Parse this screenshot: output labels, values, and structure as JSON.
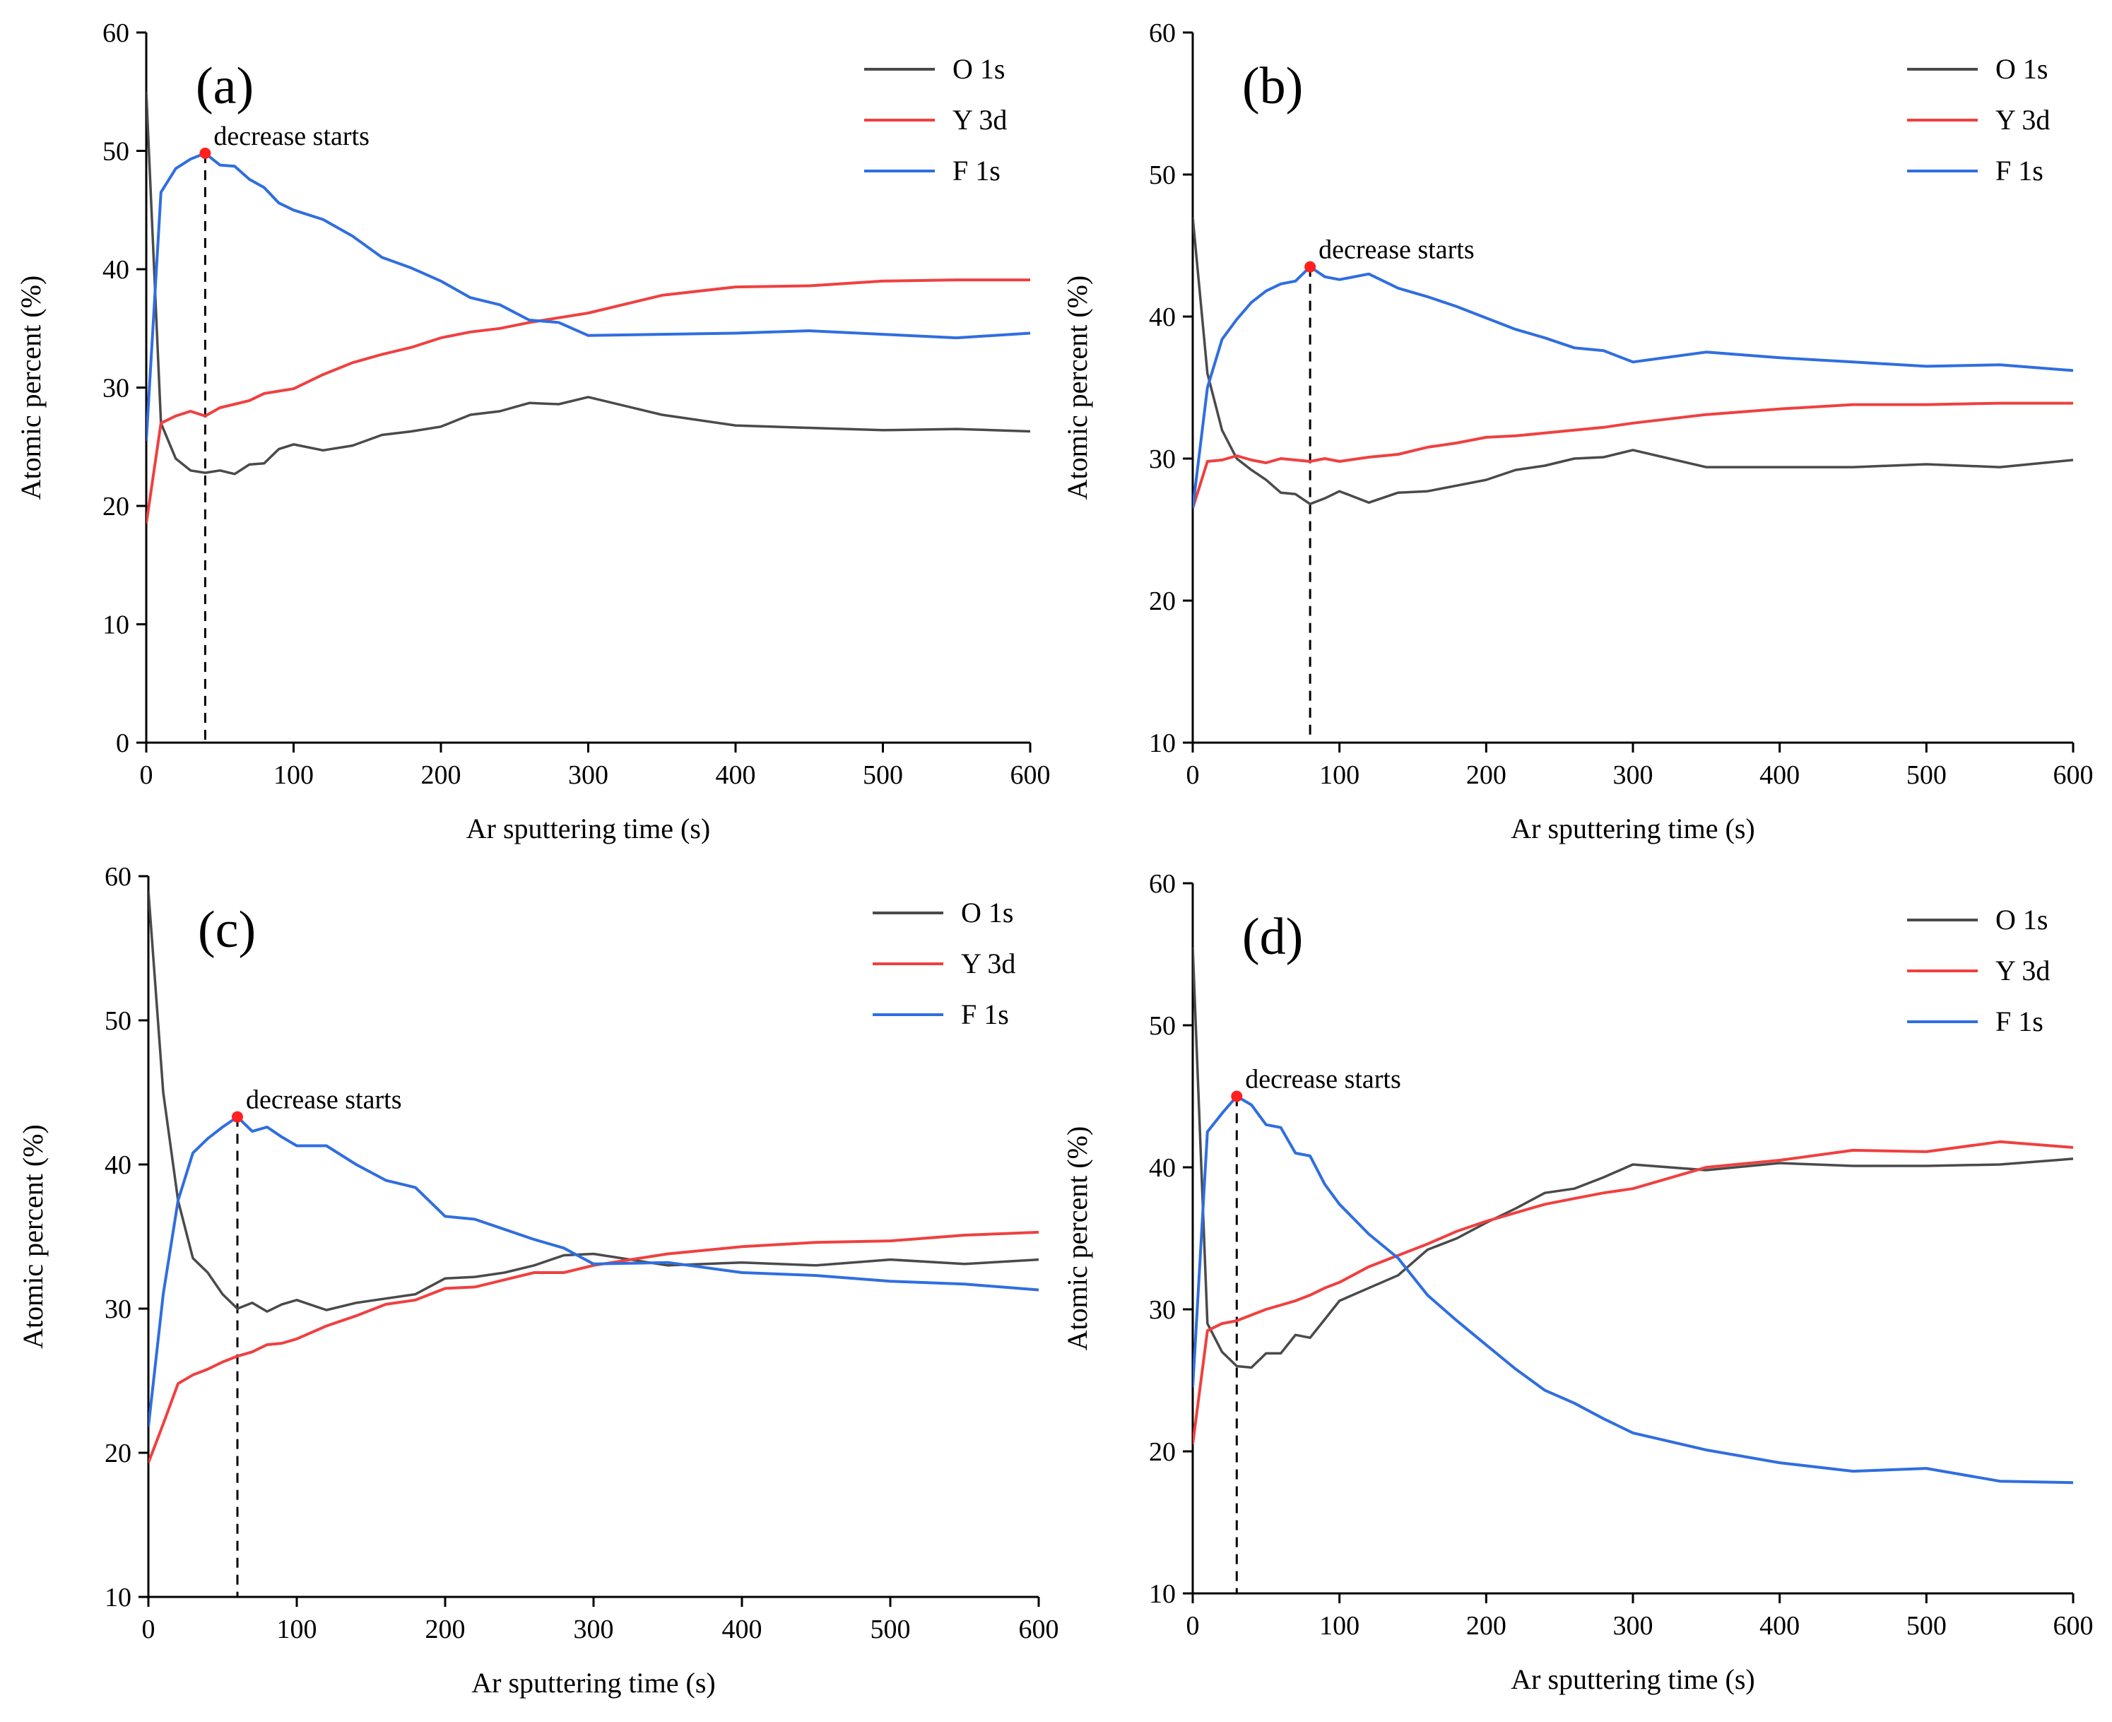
{
  "figure": {
    "colors": {
      "O 1s": "#4a4a4a",
      "Y 3d": "#f04040",
      "F 1s": "#2f6ee0",
      "marker": "#ff2020"
    }
  },
  "chart_data": [
    {
      "panel_label": "(a)",
      "type": "line",
      "xlabel": "Ar sputtering time (s)",
      "ylabel": "Atomic percent (%)",
      "xlim": [
        0,
        600
      ],
      "ylim": [
        0,
        60
      ],
      "xticks": [
        0,
        100,
        200,
        300,
        400,
        500,
        600
      ],
      "yticks": [
        0,
        10,
        20,
        30,
        40,
        50,
        60
      ],
      "legend_position": "top-right",
      "annotation": {
        "text": "decrease starts",
        "x": 40,
        "y": 49.8
      },
      "series": [
        {
          "name": "O 1s",
          "x": [
            0,
            10,
            20,
            30,
            40,
            50,
            60,
            70,
            80,
            90,
            100,
            120,
            140,
            160,
            180,
            200,
            220,
            240,
            260,
            280,
            300,
            350,
            400,
            450,
            500,
            550,
            600
          ],
          "y": [
            55,
            27,
            24,
            23,
            22.8,
            23,
            22.7,
            23.5,
            23.6,
            24.8,
            25.2,
            24.7,
            25.1,
            26,
            26.3,
            26.7,
            27.7,
            28,
            28.7,
            28.6,
            29.2,
            27.7,
            26.8,
            26.6,
            26.4,
            26.5,
            26.3
          ]
        },
        {
          "name": "Y 3d",
          "x": [
            0,
            10,
            20,
            30,
            40,
            50,
            60,
            70,
            80,
            90,
            100,
            120,
            140,
            160,
            180,
            200,
            220,
            240,
            260,
            280,
            300,
            350,
            400,
            450,
            500,
            550,
            600
          ],
          "y": [
            18.5,
            27,
            27.6,
            28,
            27.6,
            28.3,
            28.6,
            28.9,
            29.5,
            29.7,
            29.9,
            31.1,
            32.1,
            32.8,
            33.4,
            34.2,
            34.7,
            35,
            35.5,
            35.9,
            36.3,
            37.8,
            38.5,
            38.6,
            39,
            39.1,
            39.1
          ]
        },
        {
          "name": "F 1s",
          "x": [
            0,
            10,
            20,
            30,
            40,
            50,
            60,
            70,
            80,
            90,
            100,
            120,
            140,
            160,
            180,
            200,
            220,
            240,
            260,
            280,
            300,
            350,
            400,
            450,
            500,
            550,
            600
          ],
          "y": [
            25.5,
            46.5,
            48.5,
            49.3,
            49.8,
            48.8,
            48.7,
            47.6,
            46.9,
            45.6,
            45,
            44.2,
            42.8,
            41,
            40.1,
            39,
            37.6,
            37,
            35.7,
            35.5,
            34.4,
            34.5,
            34.6,
            34.8,
            34.5,
            34.2,
            34.6
          ]
        }
      ]
    },
    {
      "panel_label": "(b)",
      "type": "line",
      "xlabel": "Ar sputtering time (s)",
      "ylabel": "Atomic percent (%)",
      "xlim": [
        0,
        600
      ],
      "ylim": [
        10,
        60
      ],
      "xticks": [
        0,
        100,
        200,
        300,
        400,
        500,
        600
      ],
      "yticks": [
        10,
        20,
        30,
        40,
        50,
        60
      ],
      "legend_position": "top-right",
      "annotation": {
        "text": "decrease starts",
        "x": 80,
        "y": 43.5
      },
      "series": [
        {
          "name": "O 1s",
          "x": [
            0,
            10,
            20,
            30,
            40,
            50,
            60,
            70,
            80,
            90,
            100,
            120,
            140,
            160,
            180,
            200,
            220,
            240,
            260,
            280,
            300,
            350,
            400,
            450,
            500,
            550,
            600
          ],
          "y": [
            47,
            36,
            32,
            30,
            29.2,
            28.5,
            27.6,
            27.5,
            26.8,
            27.2,
            27.7,
            26.9,
            27.6,
            27.7,
            28.1,
            28.5,
            29.2,
            29.5,
            30,
            30.1,
            30.6,
            29.4,
            29.4,
            29.4,
            29.6,
            29.4,
            29.9
          ]
        },
        {
          "name": "Y 3d",
          "x": [
            0,
            10,
            20,
            30,
            40,
            50,
            60,
            70,
            80,
            90,
            100,
            120,
            140,
            160,
            180,
            200,
            220,
            240,
            260,
            280,
            300,
            350,
            400,
            450,
            500,
            550,
            600
          ],
          "y": [
            26.5,
            29.8,
            29.9,
            30.2,
            29.9,
            29.7,
            30,
            29.9,
            29.8,
            30,
            29.8,
            30.1,
            30.3,
            30.8,
            31.1,
            31.5,
            31.6,
            31.8,
            32,
            32.2,
            32.5,
            33.1,
            33.5,
            33.8,
            33.8,
            33.9,
            33.9
          ]
        },
        {
          "name": "F 1s",
          "x": [
            0,
            10,
            20,
            30,
            40,
            50,
            60,
            70,
            80,
            90,
            100,
            120,
            140,
            160,
            180,
            200,
            220,
            240,
            260,
            280,
            300,
            350,
            400,
            450,
            500,
            550,
            600
          ],
          "y": [
            26.5,
            35,
            38.4,
            39.8,
            41,
            41.8,
            42.3,
            42.5,
            43.5,
            42.8,
            42.6,
            43,
            42,
            41.4,
            40.7,
            39.9,
            39.1,
            38.5,
            37.8,
            37.6,
            36.8,
            37.5,
            37.1,
            36.8,
            36.5,
            36.6,
            36.2
          ]
        }
      ]
    },
    {
      "panel_label": "(c)",
      "type": "line",
      "xlabel": "Ar sputtering time (s)",
      "ylabel": "Atomic percent (%)",
      "xlim": [
        0,
        600
      ],
      "ylim": [
        10,
        60
      ],
      "xticks": [
        0,
        100,
        200,
        300,
        400,
        500,
        600
      ],
      "yticks": [
        10,
        20,
        30,
        40,
        50,
        60
      ],
      "legend_position": "top-right",
      "annotation": {
        "text": "decrease starts",
        "x": 60,
        "y": 43.3
      },
      "series": [
        {
          "name": "O 1s",
          "x": [
            0,
            10,
            20,
            30,
            40,
            50,
            60,
            70,
            80,
            90,
            100,
            120,
            140,
            160,
            180,
            200,
            220,
            240,
            260,
            280,
            300,
            350,
            400,
            450,
            500,
            550,
            600
          ],
          "y": [
            59,
            45,
            37.5,
            33.5,
            32.5,
            31,
            30,
            30.4,
            29.8,
            30.3,
            30.6,
            29.9,
            30.4,
            30.7,
            31,
            32.1,
            32.2,
            32.5,
            33,
            33.7,
            33.8,
            33,
            33.2,
            33,
            33.4,
            33.1,
            33.4
          ]
        },
        {
          "name": "Y 3d",
          "x": [
            0,
            10,
            20,
            30,
            40,
            50,
            60,
            70,
            80,
            90,
            100,
            120,
            140,
            160,
            180,
            200,
            220,
            240,
            260,
            280,
            300,
            350,
            400,
            450,
            500,
            550,
            600
          ],
          "y": [
            19.3,
            22,
            24.8,
            25.4,
            25.8,
            26.3,
            26.7,
            27,
            27.5,
            27.6,
            27.9,
            28.8,
            29.5,
            30.3,
            30.6,
            31.4,
            31.5,
            32,
            32.5,
            32.5,
            33,
            33.8,
            34.3,
            34.6,
            34.7,
            35.1,
            35.3
          ]
        },
        {
          "name": "F 1s",
          "x": [
            0,
            10,
            20,
            30,
            40,
            50,
            60,
            70,
            80,
            90,
            100,
            120,
            140,
            160,
            180,
            200,
            220,
            240,
            260,
            280,
            300,
            350,
            400,
            450,
            500,
            550,
            600
          ],
          "y": [
            21.8,
            31,
            37.5,
            40.8,
            41.8,
            42.6,
            43.3,
            42.3,
            42.6,
            41.9,
            41.3,
            41.3,
            40,
            38.9,
            38.4,
            36.4,
            36.2,
            35.5,
            34.8,
            34.2,
            33.1,
            33.2,
            32.5,
            32.3,
            31.9,
            31.7,
            31.3
          ]
        }
      ]
    },
    {
      "panel_label": "(d)",
      "type": "line",
      "xlabel": "Ar sputtering time (s)",
      "ylabel": "Atomic percent (%)",
      "xlim": [
        0,
        600
      ],
      "ylim": [
        10,
        60
      ],
      "xticks": [
        0,
        100,
        200,
        300,
        400,
        500,
        600
      ],
      "yticks": [
        10,
        20,
        30,
        40,
        50,
        60
      ],
      "legend_position": "top-right",
      "annotation": {
        "text": "decrease starts",
        "x": 30,
        "y": 45
      },
      "series": [
        {
          "name": "O 1s",
          "x": [
            0,
            10,
            20,
            30,
            40,
            50,
            60,
            70,
            80,
            90,
            100,
            120,
            140,
            160,
            180,
            200,
            220,
            240,
            260,
            280,
            300,
            350,
            400,
            450,
            500,
            550,
            600
          ],
          "y": [
            55.5,
            29,
            27,
            26,
            25.9,
            26.9,
            26.9,
            28.2,
            28,
            29.3,
            30.6,
            31.5,
            32.4,
            34.2,
            35,
            36.1,
            37.1,
            38.2,
            38.5,
            39.3,
            40.2,
            39.8,
            40.3,
            40.1,
            40.1,
            40.2,
            40.6
          ]
        },
        {
          "name": "Y 3d",
          "x": [
            0,
            10,
            20,
            30,
            40,
            50,
            60,
            70,
            80,
            90,
            100,
            120,
            140,
            160,
            180,
            200,
            220,
            240,
            260,
            280,
            300,
            350,
            400,
            450,
            500,
            550,
            600
          ],
          "y": [
            20.5,
            28.5,
            29,
            29.2,
            29.6,
            30,
            30.3,
            30.6,
            31,
            31.5,
            31.9,
            33,
            33.8,
            34.6,
            35.5,
            36.2,
            36.8,
            37.4,
            37.8,
            38.2,
            38.5,
            40,
            40.5,
            41.2,
            41.1,
            41.8,
            41.4
          ]
        },
        {
          "name": "F 1s",
          "x": [
            0,
            10,
            20,
            30,
            40,
            50,
            60,
            70,
            80,
            90,
            100,
            120,
            140,
            160,
            180,
            200,
            220,
            240,
            260,
            280,
            300,
            350,
            400,
            450,
            500,
            550,
            600
          ],
          "y": [
            24.5,
            42.5,
            43.8,
            45,
            44.4,
            43,
            42.8,
            41,
            40.8,
            38.8,
            37.4,
            35.3,
            33.6,
            31,
            29.2,
            27.5,
            25.8,
            24.3,
            23.4,
            22.3,
            21.3,
            20.1,
            19.2,
            18.6,
            18.8,
            17.9,
            17.8
          ]
        }
      ]
    }
  ]
}
